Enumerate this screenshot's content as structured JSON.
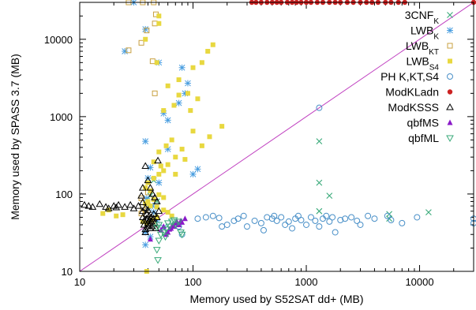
{
  "chart_data": {
    "type": "scatter",
    "title": "",
    "xlabel": "Memory used by S52SAT dd+ (MB)",
    "ylabel": "Memory used by SPASS 3.7 (MB)",
    "xscale": "log",
    "yscale": "log",
    "xlim": [
      10,
      30000
    ],
    "ylim": [
      10,
      30000
    ],
    "x_ticks": [
      10,
      100,
      1000,
      10000
    ],
    "x_tick_labels": [
      "10",
      "100",
      "1000",
      "10000"
    ],
    "y_ticks": [
      10,
      100,
      1000,
      10000
    ],
    "y_tick_labels": [
      "10",
      "100",
      "1000",
      "10000"
    ],
    "grid": false,
    "legend_position": "top-right",
    "diagonal": {
      "from": [
        10,
        10
      ],
      "to": [
        30000,
        30000
      ],
      "color": "#c040c0"
    },
    "series": [
      {
        "name_parts": [
          [
            "3CNF",
            "normal"
          ],
          [
            "K",
            "sub"
          ]
        ],
        "marker": "x",
        "color": "#3aaa7a",
        "points": [
          [
            1300,
            480
          ],
          [
            1300,
            140
          ],
          [
            1600,
            95
          ],
          [
            1300,
            60
          ],
          [
            5400,
            55
          ],
          [
            12000,
            58
          ],
          [
            5400,
            48
          ],
          [
            45,
            150
          ],
          [
            48,
            80
          ],
          [
            42,
            95
          ]
        ]
      },
      {
        "name_parts": [
          [
            "LWB",
            "normal"
          ],
          [
            "K",
            "sub"
          ]
        ],
        "marker": "star",
        "color": "#4a9ee0",
        "points": [
          [
            30,
            30000
          ],
          [
            38,
            13500
          ],
          [
            25,
            7000
          ],
          [
            50,
            5000
          ],
          [
            80,
            4300
          ],
          [
            85,
            2000
          ],
          [
            55,
            1100
          ],
          [
            38,
            480
          ],
          [
            60,
            380
          ],
          [
            40,
            160
          ],
          [
            50,
            140
          ],
          [
            100,
            180
          ],
          [
            42,
            220
          ],
          [
            40,
            65
          ],
          [
            45,
            58
          ],
          [
            38,
            32
          ],
          [
            48,
            45
          ],
          [
            55,
            37
          ],
          [
            38,
            22
          ],
          [
            42,
            28
          ],
          [
            44,
            70
          ],
          [
            39,
            88
          ],
          [
            90,
            2700
          ],
          [
            75,
            1500
          ],
          [
            60,
            900
          ],
          [
            110,
            210
          ]
        ]
      },
      {
        "name_parts": [
          [
            "LWB",
            "normal"
          ],
          [
            "KT",
            "sub"
          ]
        ],
        "marker": "square-open",
        "color": "#c8a040",
        "points": [
          [
            27,
            30000
          ],
          [
            36,
            30000
          ],
          [
            45,
            30000
          ],
          [
            47,
            21000
          ],
          [
            46,
            16000
          ],
          [
            39,
            13000
          ],
          [
            35,
            9000
          ],
          [
            27,
            7200
          ],
          [
            44,
            5200
          ],
          [
            46,
            2000
          ],
          [
            40,
            105
          ],
          [
            35,
            88
          ],
          [
            36,
            68
          ],
          [
            38,
            62
          ],
          [
            35,
            56
          ],
          [
            40,
            48
          ],
          [
            44,
            44
          ]
        ]
      },
      {
        "name_parts": [
          [
            "LWB",
            "normal"
          ],
          [
            "S4",
            "sub"
          ]
        ],
        "marker": "square",
        "color": "#e8d840",
        "points": [
          [
            50,
            20000
          ],
          [
            50,
            16000
          ],
          [
            38,
            10000
          ],
          [
            48,
            5000
          ],
          [
            150,
            8500
          ],
          [
            135,
            7000
          ],
          [
            120,
            5000
          ],
          [
            100,
            4300
          ],
          [
            75,
            3000
          ],
          [
            60,
            2500
          ],
          [
            90,
            2000
          ],
          [
            110,
            1700
          ],
          [
            68,
            1400
          ],
          [
            55,
            1200
          ],
          [
            180,
            750
          ],
          [
            140,
            550
          ],
          [
            120,
            420
          ],
          [
            80,
            380
          ],
          [
            70,
            300
          ],
          [
            60,
            240
          ],
          [
            55,
            200
          ],
          [
            50,
            180
          ],
          [
            45,
            160
          ],
          [
            40,
            140
          ],
          [
            38,
            120
          ],
          [
            42,
            110
          ],
          [
            50,
            98
          ],
          [
            55,
            90
          ],
          [
            45,
            85
          ],
          [
            40,
            80
          ],
          [
            38,
            75
          ],
          [
            42,
            70
          ],
          [
            48,
            68
          ],
          [
            55,
            62
          ],
          [
            60,
            58
          ],
          [
            65,
            52
          ],
          [
            48,
            50
          ],
          [
            43,
            46
          ],
          [
            39,
            42
          ],
          [
            18,
            62
          ],
          [
            16,
            56
          ],
          [
            21,
            52
          ],
          [
            24,
            54
          ],
          [
            36,
            44
          ],
          [
            39,
            10
          ],
          [
            75,
            1900
          ],
          [
            95,
            1200
          ],
          [
            100,
            650
          ],
          [
            65,
            500
          ],
          [
            58,
            420
          ],
          [
            85,
            280
          ],
          [
            50,
            350
          ],
          [
            45,
            260
          ],
          [
            52,
            230
          ],
          [
            70,
            180
          ]
        ]
      },
      {
        "name_parts": [
          [
            "PH K,KT,S4",
            "normal"
          ]
        ],
        "marker": "circle-open",
        "color": "#4a90c8",
        "points": [
          [
            1300,
            1300
          ],
          [
            75,
            38
          ],
          [
            80,
            30
          ],
          [
            110,
            48
          ],
          [
            130,
            50
          ],
          [
            150,
            52
          ],
          [
            170,
            49
          ],
          [
            180,
            38
          ],
          [
            200,
            40
          ],
          [
            230,
            45
          ],
          [
            250,
            48
          ],
          [
            280,
            52
          ],
          [
            300,
            38
          ],
          [
            350,
            45
          ],
          [
            400,
            42
          ],
          [
            420,
            34
          ],
          [
            450,
            50
          ],
          [
            500,
            48
          ],
          [
            520,
            52
          ],
          [
            550,
            45
          ],
          [
            600,
            50
          ],
          [
            650,
            40
          ],
          [
            700,
            44
          ],
          [
            750,
            36
          ],
          [
            800,
            48
          ],
          [
            850,
            52
          ],
          [
            900,
            46
          ],
          [
            1000,
            40
          ],
          [
            1100,
            50
          ],
          [
            1200,
            45
          ],
          [
            1300,
            38
          ],
          [
            1400,
            48
          ],
          [
            1500,
            52
          ],
          [
            1600,
            44
          ],
          [
            1700,
            50
          ],
          [
            1800,
            32
          ],
          [
            2000,
            46
          ],
          [
            2200,
            48
          ],
          [
            2500,
            50
          ],
          [
            2800,
            45
          ],
          [
            3000,
            40
          ],
          [
            3500,
            52
          ],
          [
            4000,
            48
          ],
          [
            5200,
            52
          ],
          [
            5600,
            46
          ],
          [
            7000,
            42
          ],
          [
            9500,
            50
          ],
          [
            30000,
            48
          ],
          [
            30000,
            42
          ]
        ]
      },
      {
        "name_parts": [
          [
            "ModKLadn",
            "normal"
          ]
        ],
        "marker": "circle",
        "color": "#cc2222",
        "points": [
          [
            330,
            30000
          ],
          [
            360,
            30000
          ],
          [
            400,
            30000
          ],
          [
            450,
            30000
          ],
          [
            500,
            30000
          ],
          [
            550,
            30000
          ],
          [
            600,
            30000
          ],
          [
            680,
            30000
          ],
          [
            750,
            30000
          ],
          [
            820,
            30000
          ],
          [
            900,
            30000
          ],
          [
            1000,
            30000
          ],
          [
            1100,
            30000
          ],
          [
            1250,
            30000
          ],
          [
            1400,
            30000
          ],
          [
            1600,
            30000
          ],
          [
            1800,
            30000
          ],
          [
            2000,
            30000
          ],
          [
            2300,
            30000
          ],
          [
            2600,
            30000
          ],
          [
            3000,
            30000
          ],
          [
            3400,
            30000
          ],
          [
            3800,
            30000
          ],
          [
            4300,
            30000
          ],
          [
            5000,
            30000
          ],
          [
            5600,
            30000
          ],
          [
            6500,
            30000
          ],
          [
            7400,
            30000
          ],
          [
            30000,
            30000
          ]
        ]
      },
      {
        "name_parts": [
          [
            "ModKSSS",
            "normal"
          ]
        ],
        "marker": "triangle-open",
        "color": "#000000",
        "points": [
          [
            11,
            72
          ],
          [
            12,
            70
          ],
          [
            13,
            68
          ],
          [
            15,
            74
          ],
          [
            17,
            68
          ],
          [
            18,
            65
          ],
          [
            20,
            70
          ],
          [
            21,
            67
          ],
          [
            22,
            72
          ],
          [
            25,
            68
          ],
          [
            28,
            72
          ],
          [
            30,
            65
          ],
          [
            33,
            70
          ],
          [
            36,
            60
          ],
          [
            36,
            50
          ],
          [
            37,
            45
          ],
          [
            37,
            40
          ],
          [
            38,
            35
          ],
          [
            38,
            32
          ],
          [
            39,
            55
          ],
          [
            39,
            48
          ],
          [
            40,
            42
          ],
          [
            40,
            38
          ],
          [
            41,
            52
          ],
          [
            41,
            46
          ],
          [
            42,
            40
          ],
          [
            42,
            36
          ],
          [
            43,
            50
          ],
          [
            43,
            44
          ],
          [
            44,
            38
          ],
          [
            45,
            55
          ],
          [
            45,
            48
          ],
          [
            46,
            42
          ],
          [
            47,
            36
          ],
          [
            48,
            50
          ],
          [
            38,
            230
          ],
          [
            40,
            150
          ],
          [
            42,
            120
          ],
          [
            44,
            100
          ],
          [
            46,
            90
          ],
          [
            48,
            80
          ],
          [
            49,
            270
          ],
          [
            50,
            60
          ],
          [
            36,
            120
          ],
          [
            35,
            95
          ],
          [
            36,
            78
          ],
          [
            38,
            66
          ],
          [
            40,
            62
          ]
        ]
      },
      {
        "name_parts": [
          [
            "qbfMS",
            "normal"
          ]
        ],
        "marker": "triangle",
        "color": "#8a1ac8",
        "points": [
          [
            52,
            34
          ],
          [
            55,
            38
          ],
          [
            58,
            30
          ],
          [
            60,
            32
          ],
          [
            62,
            35
          ],
          [
            64,
            36
          ],
          [
            66,
            40
          ],
          [
            68,
            38
          ],
          [
            70,
            42
          ],
          [
            72,
            44
          ],
          [
            75,
            40
          ],
          [
            78,
            45
          ],
          [
            80,
            43
          ],
          [
            85,
            48
          ],
          [
            42,
            26
          ]
        ]
      },
      {
        "name_parts": [
          [
            "qbfML",
            "normal"
          ]
        ],
        "marker": "triangle-down-open",
        "color": "#3aaa7a",
        "points": [
          [
            49,
            14
          ],
          [
            48,
            19
          ],
          [
            50,
            25
          ],
          [
            52,
            30
          ],
          [
            55,
            32
          ],
          [
            57,
            28
          ],
          [
            58,
            35
          ],
          [
            60,
            42
          ],
          [
            62,
            38
          ],
          [
            65,
            44
          ],
          [
            68,
            46
          ],
          [
            70,
            40
          ],
          [
            75,
            44
          ],
          [
            78,
            32
          ],
          [
            80,
            30
          ],
          [
            48,
            37
          ],
          [
            50,
            40
          ]
        ]
      }
    ]
  }
}
